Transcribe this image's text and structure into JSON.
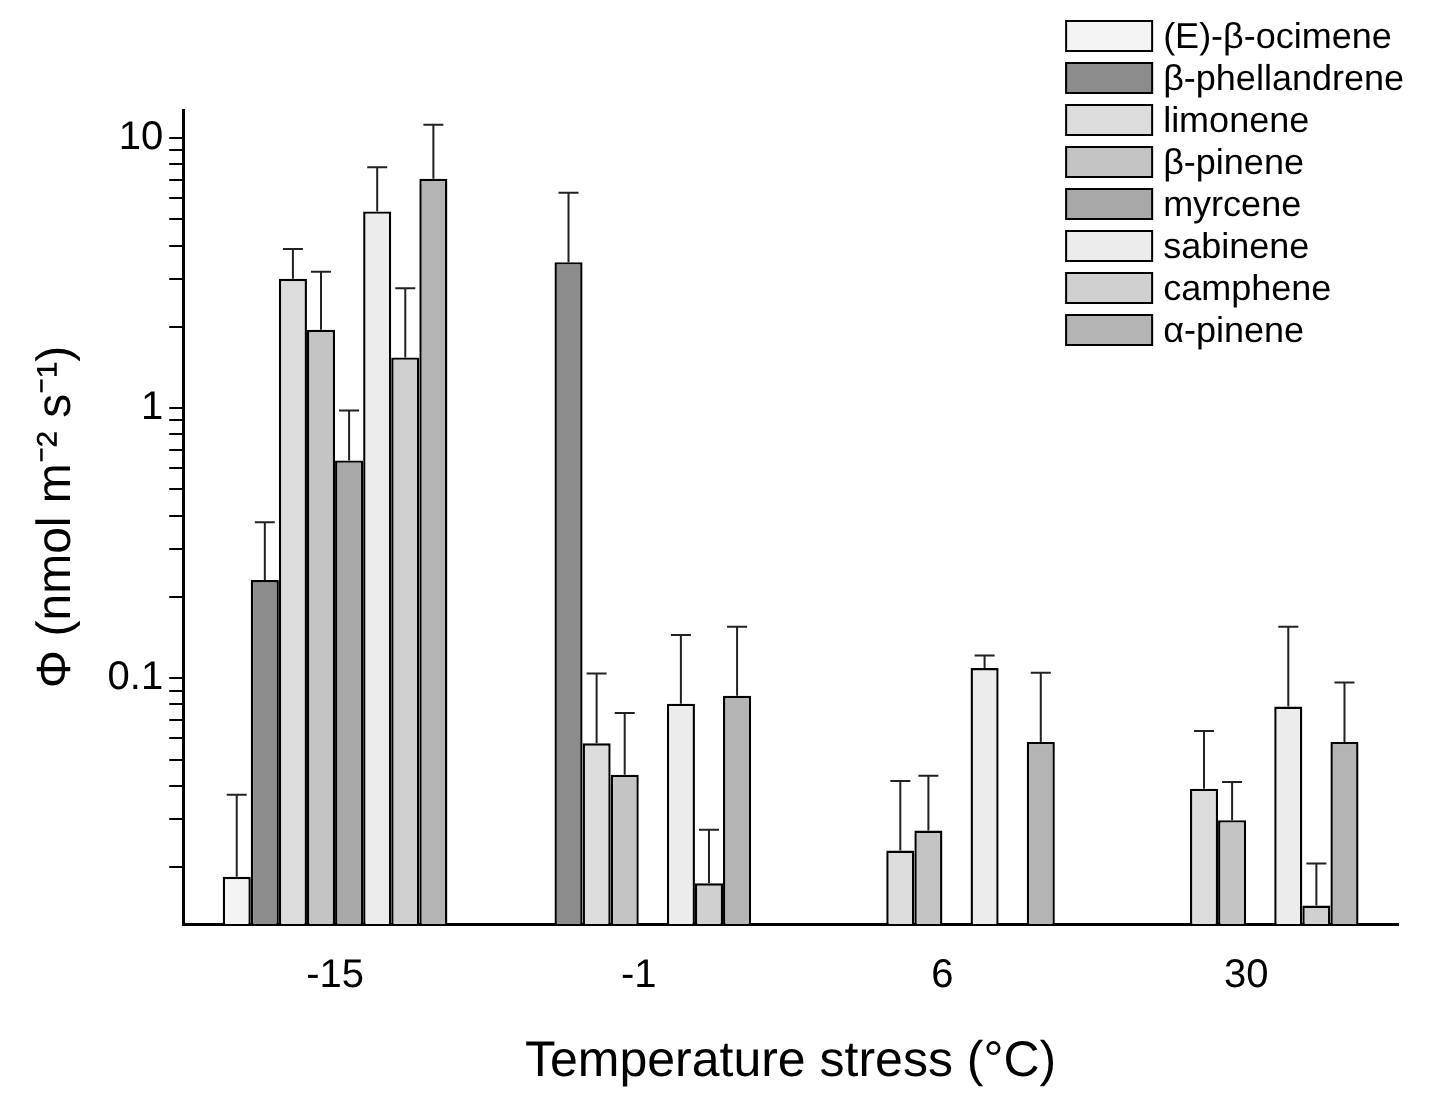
{
  "chart_data": {
    "type": "bar",
    "xlabel": "Temperature stress (°C)",
    "ylabel": "Φ (nmol m⁻² s⁻¹)",
    "categories": [
      "-15",
      "-1",
      "6",
      "30"
    ],
    "series": [
      {
        "name": "(E)-β-ocimene",
        "color": "#f4f4f4",
        "values": [
          0.0184,
          null,
          null,
          null
        ],
        "errors": [
          [
            0.0184,
            0.037
          ],
          null,
          null,
          null
        ]
      },
      {
        "name": "β-phellandrene",
        "color": "#8c8c8c",
        "values": [
          0.231,
          3.47,
          null,
          null
        ],
        "errors": [
          [
            0.231,
            0.378
          ],
          [
            3.47,
            6.27
          ],
          null,
          null
        ]
      },
      {
        "name": "limonene",
        "color": "#dcdcdc",
        "values": [
          3.01,
          0.0574,
          0.023,
          0.039
        ],
        "errors": [
          [
            3.01,
            3.88
          ],
          [
            0.0574,
            0.104
          ],
          [
            0.023,
            0.0416
          ],
          [
            0.039,
            0.0637
          ]
        ]
      },
      {
        "name": "β-pinene",
        "color": "#c4c4c4",
        "values": [
          1.95,
          0.0439,
          0.0273,
          0.0298
        ],
        "errors": [
          [
            1.95,
            3.2
          ],
          [
            0.0439,
            0.0743
          ],
          [
            0.0273,
            0.0435
          ],
          [
            0.0298,
            0.0413
          ]
        ]
      },
      {
        "name": "myrcene",
        "color": "#a8a8a8",
        "values": [
          0.64,
          null,
          null,
          null
        ],
        "errors": [
          [
            0.64,
            0.98
          ],
          null,
          null,
          null
        ]
      },
      {
        "name": "sabinene",
        "color": "#ececec",
        "values": [
          5.35,
          0.0805,
          0.109,
          0.0785
        ],
        "errors": [
          [
            5.35,
            7.8
          ],
          [
            0.0805,
            0.1445
          ],
          [
            0.109,
            0.1213
          ],
          [
            0.0785,
            0.155
          ]
        ]
      },
      {
        "name": "camphene",
        "color": "#d0d0d0",
        "values": [
          1.54,
          0.0174,
          null,
          0.0144
        ],
        "errors": [
          [
            1.54,
            2.78
          ],
          [
            0.0174,
            0.0275
          ],
          null,
          [
            0.0144,
            0.0206
          ]
        ]
      },
      {
        "name": "α-pinene",
        "color": "#b4b4b4",
        "values": [
          7.07,
          0.0861,
          0.0581,
          0.0581
        ],
        "errors": [
          [
            7.07,
            11.2
          ],
          [
            0.0861,
            0.155
          ],
          [
            0.0581,
            0.1047
          ],
          [
            0.0581,
            0.0965
          ]
        ]
      }
    ],
    "log": "y",
    "ylim": [
      0.0123,
      12.7
    ],
    "yticks": [
      {
        "value": 0.02,
        "label": null
      },
      {
        "value": 0.03,
        "label": null
      },
      {
        "value": 0.04,
        "label": null
      },
      {
        "value": 0.05,
        "label": null
      },
      {
        "value": 0.06,
        "label": null
      },
      {
        "value": 0.07,
        "label": null
      },
      {
        "value": 0.08,
        "label": null
      },
      {
        "value": 0.09,
        "label": null
      },
      0.1,
      {
        "value": 0.2,
        "label": null
      },
      {
        "value": 0.3,
        "label": null
      },
      {
        "value": 0.4,
        "label": null
      },
      {
        "value": 0.5,
        "label": null
      },
      {
        "value": 0.6,
        "label": null
      },
      {
        "value": 0.7,
        "label": null
      },
      {
        "value": 0.8,
        "label": null
      },
      {
        "value": 0.9,
        "label": null
      },
      1,
      {
        "value": 2,
        "label": null
      },
      {
        "value": 3,
        "label": null
      },
      {
        "value": 4,
        "label": null
      },
      {
        "value": 5,
        "label": null
      },
      {
        "value": 6,
        "label": null
      },
      {
        "value": 7,
        "label": null
      },
      {
        "value": 8,
        "label": null
      },
      {
        "value": 9,
        "label": null
      },
      10
    ],
    "grid": false,
    "legend": "top right"
  }
}
